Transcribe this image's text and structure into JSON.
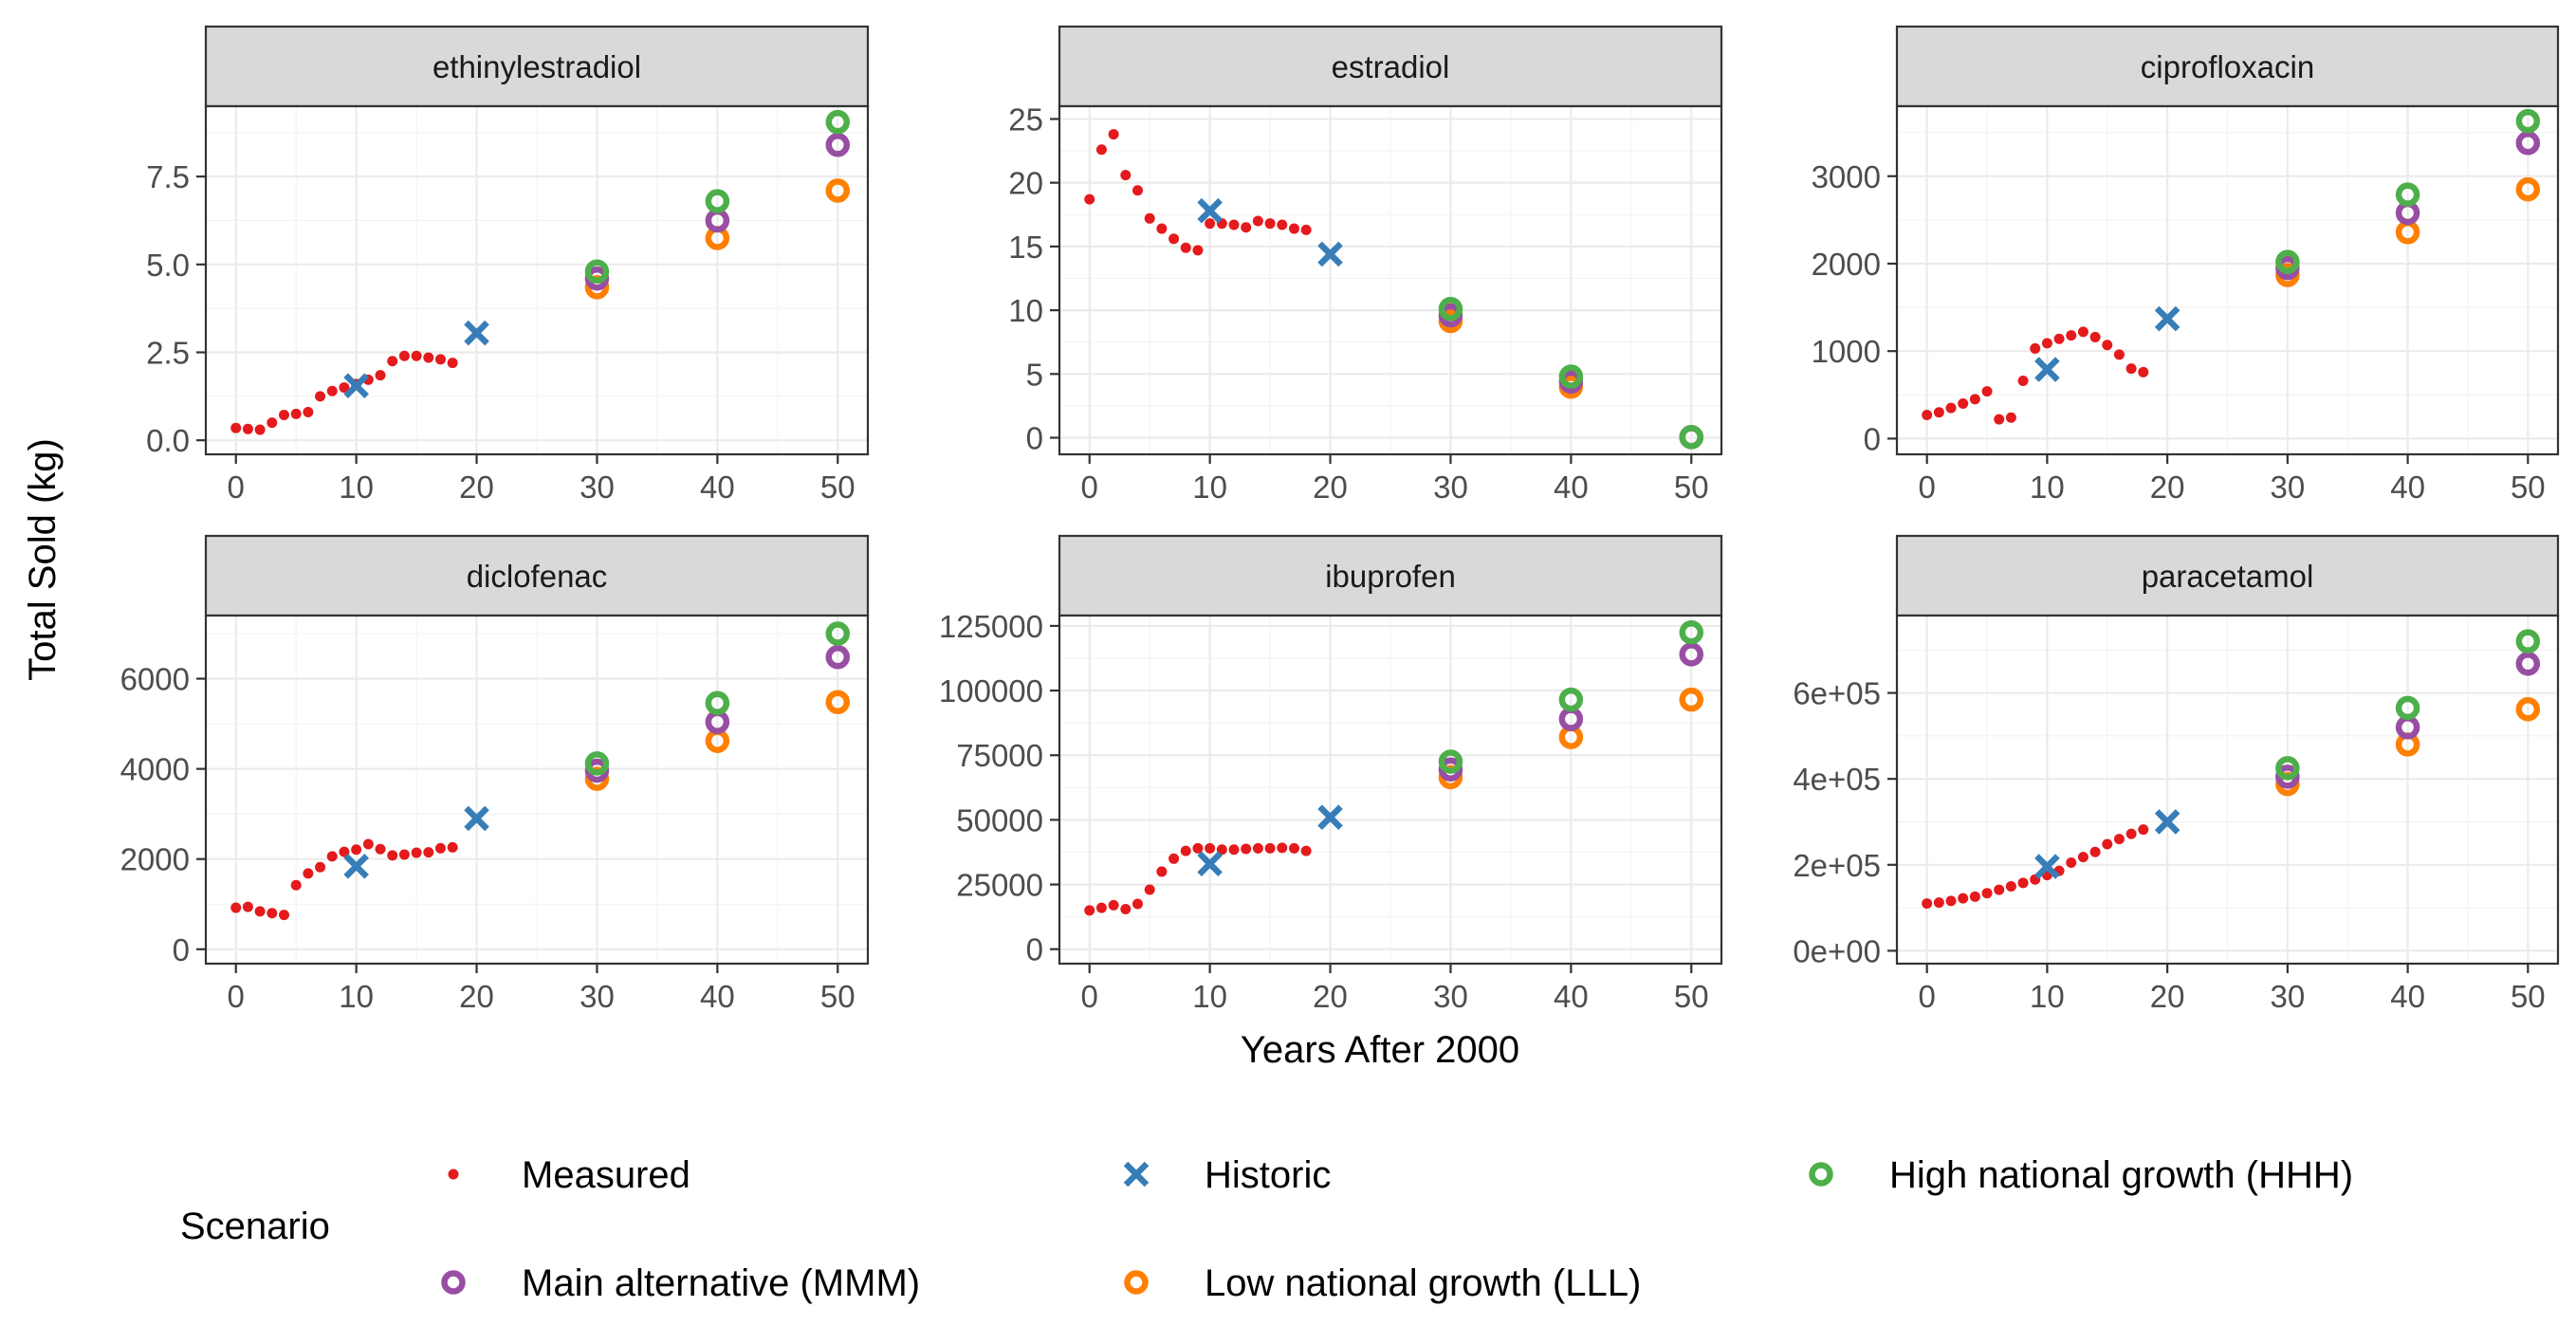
{
  "chart_data": {
    "type": "scatter",
    "facet": "wrap",
    "x_label": "Years After 2000",
    "y_label": "Total Sold (kg)",
    "x_range": [
      -2.5,
      52.5
    ],
    "x_ticks": [
      0,
      10,
      20,
      30,
      40,
      50
    ],
    "legend": {
      "title": "Scenario",
      "position": "bottom",
      "entries": [
        {
          "key": "measured",
          "label": "Measured",
          "color": "#e41a1c",
          "shape": "dot"
        },
        {
          "key": "historic",
          "label": "Historic",
          "color": "#377eb8",
          "shape": "cross"
        },
        {
          "key": "hhh",
          "label": "High national growth (HHH)",
          "color": "#4daf4a",
          "shape": "ring"
        },
        {
          "key": "mmm",
          "label": "Main alternative (MMM)",
          "color": "#984ea3",
          "shape": "ring"
        },
        {
          "key": "lll",
          "label": "Low national growth (LLL)",
          "color": "#ff7f00",
          "shape": "ring"
        }
      ]
    },
    "panels": [
      {
        "title": "ethinylestradiol",
        "y_range": [
          -0.4,
          9.5
        ],
        "y_ticks": [
          0,
          2.5,
          5,
          7.5
        ],
        "y_tick_labels": [
          "0.0",
          "2.5",
          "5.0",
          "7.5"
        ],
        "measured": {
          "x": [
            0,
            1,
            2,
            3,
            4,
            5,
            6,
            7,
            8,
            9,
            10,
            11,
            12,
            13,
            14,
            15,
            16,
            17,
            18
          ],
          "y": [
            0.35,
            0.32,
            0.3,
            0.5,
            0.72,
            0.75,
            0.8,
            1.25,
            1.4,
            1.5,
            1.6,
            1.72,
            1.85,
            2.25,
            2.4,
            2.4,
            2.35,
            2.3,
            2.2
          ]
        },
        "historic": {
          "x": [
            10,
            20
          ],
          "y": [
            1.55,
            3.05
          ]
        },
        "hhh": {
          "x": [
            30,
            40,
            50
          ],
          "y": [
            4.8,
            6.8,
            9.05
          ]
        },
        "mmm": {
          "x": [
            30,
            40,
            50
          ],
          "y": [
            4.6,
            6.25,
            8.4
          ]
        },
        "lll": {
          "x": [
            30,
            40,
            50
          ],
          "y": [
            4.35,
            5.75,
            7.1
          ]
        }
      },
      {
        "title": "estradiol",
        "y_range": [
          -1.3,
          26
        ],
        "y_ticks": [
          0,
          5,
          10,
          15,
          20,
          25
        ],
        "y_tick_labels": [
          "0",
          "5",
          "10",
          "15",
          "20",
          "25"
        ],
        "measured": {
          "x": [
            0,
            1,
            2,
            3,
            4,
            5,
            6,
            7,
            8,
            9,
            10,
            11,
            12,
            13,
            14,
            15,
            16,
            17,
            18
          ],
          "y": [
            18.7,
            22.6,
            23.8,
            20.6,
            19.4,
            17.2,
            16.4,
            15.6,
            14.9,
            14.7,
            16.8,
            16.8,
            16.7,
            16.5,
            17.0,
            16.8,
            16.7,
            16.4,
            16.3
          ]
        },
        "historic": {
          "x": [
            10,
            20
          ],
          "y": [
            17.8,
            14.4
          ]
        },
        "hhh": {
          "x": [
            30,
            40,
            50
          ],
          "y": [
            10.1,
            4.8,
            0.05
          ]
        },
        "mmm": {
          "x": [
            30,
            40,
            50
          ],
          "y": [
            9.6,
            4.4,
            0.05
          ]
        },
        "lll": {
          "x": [
            30,
            40,
            50
          ],
          "y": [
            9.15,
            4.0,
            0.05
          ]
        }
      },
      {
        "title": "ciprofloxacin",
        "y_range": [
          -180,
          3800
        ],
        "y_ticks": [
          0,
          1000,
          2000,
          3000
        ],
        "y_tick_labels": [
          "0",
          "1000",
          "2000",
          "3000"
        ],
        "measured": {
          "x": [
            0,
            1,
            2,
            3,
            4,
            5,
            6,
            7,
            8,
            9,
            10,
            11,
            12,
            13,
            14,
            15,
            16,
            17,
            18
          ],
          "y": [
            270,
            300,
            350,
            400,
            450,
            540,
            220,
            240,
            660,
            1030,
            1090,
            1140,
            1180,
            1220,
            1160,
            1070,
            960,
            800,
            760
          ]
        },
        "historic": {
          "x": [
            10,
            20
          ],
          "y": [
            790,
            1370
          ]
        },
        "hhh": {
          "x": [
            30,
            40,
            50
          ],
          "y": [
            2020,
            2790,
            3630
          ]
        },
        "mmm": {
          "x": [
            30,
            40,
            50
          ],
          "y": [
            1950,
            2580,
            3380
          ]
        },
        "lll": {
          "x": [
            30,
            40,
            50
          ],
          "y": [
            1870,
            2360,
            2850
          ]
        }
      },
      {
        "title": "diclofenac",
        "y_range": [
          -320,
          7400
        ],
        "y_ticks": [
          0,
          2000,
          4000,
          6000
        ],
        "y_tick_labels": [
          "0",
          "2000",
          "4000",
          "6000"
        ],
        "measured": {
          "x": [
            0,
            1,
            2,
            3,
            4,
            5,
            6,
            7,
            8,
            9,
            10,
            11,
            12,
            13,
            14,
            15,
            16,
            17,
            18
          ],
          "y": [
            920,
            940,
            840,
            800,
            760,
            1420,
            1680,
            1820,
            2060,
            2160,
            2210,
            2330,
            2220,
            2080,
            2100,
            2140,
            2150,
            2240,
            2260
          ]
        },
        "historic": {
          "x": [
            10,
            20
          ],
          "y": [
            1840,
            2900
          ]
        },
        "hhh": {
          "x": [
            30,
            40,
            50
          ],
          "y": [
            4120,
            5460,
            7000
          ]
        },
        "mmm": {
          "x": [
            30,
            40,
            50
          ],
          "y": [
            3960,
            5040,
            6480
          ]
        },
        "lll": {
          "x": [
            30,
            40,
            50
          ],
          "y": [
            3780,
            4620,
            5480
          ]
        }
      },
      {
        "title": "ibuprofen",
        "y_range": [
          -5600,
          129000
        ],
        "y_ticks": [
          0,
          25000,
          50000,
          75000,
          100000,
          125000
        ],
        "y_tick_labels": [
          "0",
          "25000",
          "50000",
          "75000",
          "100000",
          "125000"
        ],
        "measured": {
          "x": [
            0,
            1,
            2,
            3,
            4,
            5,
            6,
            7,
            8,
            9,
            10,
            11,
            12,
            13,
            14,
            15,
            16,
            17,
            18
          ],
          "y": [
            15000,
            16000,
            17000,
            15500,
            17500,
            23000,
            30000,
            35000,
            38000,
            39000,
            39000,
            38500,
            38500,
            38800,
            39000,
            39000,
            39200,
            39000,
            38000
          ]
        },
        "historic": {
          "x": [
            10,
            20
          ],
          "y": [
            33000,
            51000
          ]
        },
        "hhh": {
          "x": [
            30,
            40,
            50
          ],
          "y": [
            72500,
            96500,
            122500
          ]
        },
        "mmm": {
          "x": [
            30,
            40,
            50
          ],
          "y": [
            69500,
            89000,
            114000
          ]
        },
        "lll": {
          "x": [
            30,
            40,
            50
          ],
          "y": [
            66500,
            82000,
            96500
          ]
        }
      },
      {
        "title": "paracetamol",
        "y_range": [
          -30000,
          780000
        ],
        "y_ticks": [
          0,
          200000,
          400000,
          600000
        ],
        "y_tick_labels": [
          "0e+00",
          "2e+05",
          "4e+05",
          "6e+05"
        ],
        "measured": {
          "x": [
            0,
            1,
            2,
            3,
            4,
            5,
            6,
            7,
            8,
            9,
            10,
            11,
            12,
            13,
            14,
            15,
            16,
            17,
            18
          ],
          "y": [
            110000,
            112000,
            116000,
            122000,
            126000,
            134000,
            142000,
            150000,
            158000,
            166000,
            176000,
            186000,
            205000,
            218000,
            230000,
            248000,
            260000,
            272000,
            282000
          ]
        },
        "historic": {
          "x": [
            10,
            20
          ],
          "y": [
            196000,
            300000
          ]
        },
        "hhh": {
          "x": [
            30,
            40,
            50
          ],
          "y": [
            425000,
            565000,
            720000
          ]
        },
        "mmm": {
          "x": [
            30,
            40,
            50
          ],
          "y": [
            405000,
            520000,
            668000
          ]
        },
        "lll": {
          "x": [
            30,
            40,
            50
          ],
          "y": [
            388000,
            480000,
            562000
          ]
        }
      }
    ]
  }
}
